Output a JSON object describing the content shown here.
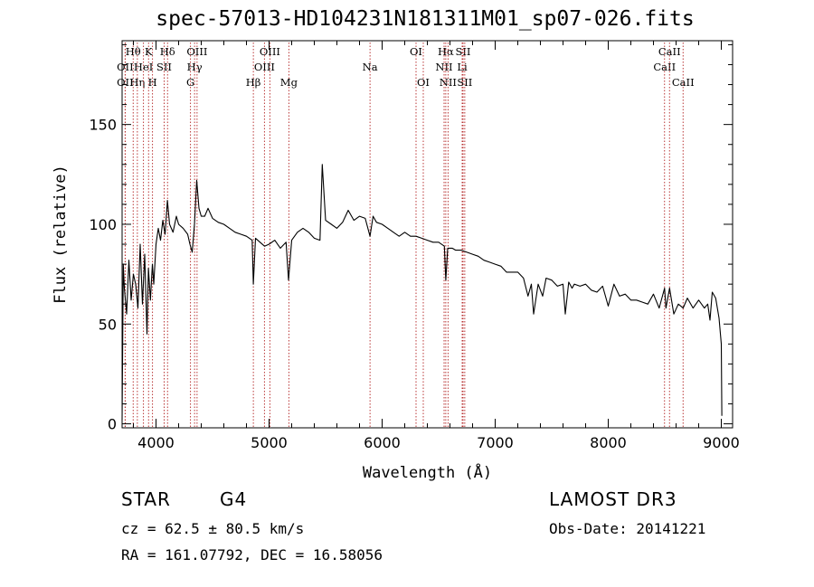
{
  "chart_data": {
    "type": "line",
    "title": "spec-57013-HD104231N181311M01_sp07-026.fits",
    "xlabel": "Wavelength (Å)",
    "ylabel": "Flux (relative)",
    "xlim": [
      3700,
      9100
    ],
    "ylim": [
      -2,
      192
    ],
    "xticks": [
      4000,
      5000,
      6000,
      7000,
      8000,
      9000
    ],
    "yticks": [
      0,
      50,
      100,
      150
    ],
    "series": [
      {
        "name": "flux",
        "x": [
          3700,
          3710,
          3720,
          3740,
          3760,
          3780,
          3800,
          3820,
          3840,
          3860,
          3880,
          3900,
          3920,
          3933,
          3950,
          3968,
          3980,
          4000,
          4020,
          4040,
          4060,
          4080,
          4101,
          4120,
          4150,
          4180,
          4200,
          4240,
          4280,
          4300,
          4320,
          4340,
          4360,
          4380,
          4400,
          4430,
          4460,
          4500,
          4550,
          4600,
          4650,
          4700,
          4750,
          4800,
          4850,
          4861,
          4880,
          4920,
          4960,
          5000,
          5050,
          5100,
          5150,
          5172,
          5200,
          5250,
          5300,
          5350,
          5400,
          5450,
          5470,
          5500,
          5550,
          5600,
          5650,
          5700,
          5750,
          5800,
          5850,
          5893,
          5920,
          5950,
          6000,
          6050,
          6100,
          6150,
          6200,
          6250,
          6300,
          6350,
          6400,
          6450,
          6500,
          6550,
          6563,
          6580,
          6620,
          6650,
          6700,
          6750,
          6800,
          6850,
          6900,
          6950,
          7000,
          7050,
          7100,
          7150,
          7200,
          7250,
          7290,
          7320,
          7340,
          7380,
          7420,
          7450,
          7500,
          7550,
          7600,
          7620,
          7650,
          7680,
          7700,
          7750,
          7800,
          7850,
          7900,
          7950,
          8000,
          8050,
          8100,
          8150,
          8200,
          8250,
          8300,
          8350,
          8400,
          8450,
          8498,
          8510,
          8542,
          8580,
          8620,
          8662,
          8700,
          8750,
          8800,
          8850,
          8880,
          8900,
          8920,
          8950,
          8980,
          9000,
          9005
        ],
        "y": [
          2,
          80,
          68,
          55,
          82,
          62,
          75,
          70,
          58,
          90,
          60,
          85,
          45,
          78,
          62,
          80,
          70,
          90,
          98,
          92,
          102,
          95,
          112,
          100,
          96,
          104,
          100,
          98,
          95,
          90,
          86,
          100,
          122,
          108,
          104,
          104,
          108,
          103,
          101,
          100,
          98,
          96,
          95,
          94,
          92,
          70,
          93,
          91,
          89,
          90,
          92,
          88,
          91,
          72,
          92,
          96,
          98,
          96,
          93,
          92,
          130,
          102,
          100,
          98,
          101,
          107,
          102,
          104,
          103,
          94,
          104,
          101,
          100,
          98,
          96,
          94,
          96,
          94,
          94,
          93,
          92,
          91,
          91,
          89,
          72,
          88,
          88,
          87,
          87,
          86,
          85,
          84,
          82,
          81,
          80,
          79,
          76,
          76,
          76,
          73,
          64,
          70,
          55,
          70,
          64,
          73,
          72,
          69,
          70,
          55,
          71,
          68,
          70,
          69,
          70,
          67,
          66,
          69,
          59,
          70,
          64,
          65,
          62,
          62,
          61,
          60,
          65,
          58,
          68,
          58,
          68,
          55,
          60,
          58,
          63,
          58,
          62,
          58,
          60,
          52,
          66,
          63,
          53,
          40,
          4
        ]
      }
    ],
    "lines": [
      {
        "name": "Hθ",
        "w": 3798,
        "row": 0
      },
      {
        "name": "OII",
        "w": 3727,
        "row": 1
      },
      {
        "name": "OII",
        "w": 3727,
        "row": 2
      },
      {
        "name": "Hη",
        "w": 3835,
        "row": 2
      },
      {
        "name": "HeI",
        "w": 3889,
        "row": 1
      },
      {
        "name": "K",
        "w": 3934,
        "row": 0
      },
      {
        "name": "H",
        "w": 3969,
        "row": 2
      },
      {
        "name": "SII",
        "w": 4072,
        "row": 1
      },
      {
        "name": "Hδ",
        "w": 4102,
        "row": 0
      },
      {
        "name": "G",
        "w": 4305,
        "row": 2
      },
      {
        "name": "Hγ",
        "w": 4341,
        "row": 1
      },
      {
        "name": "OIII",
        "w": 4363,
        "row": 0
      },
      {
        "name": "Hβ",
        "w": 4861,
        "row": 2
      },
      {
        "name": "OIII",
        "w": 4959,
        "row": 1
      },
      {
        "name": "OIII",
        "w": 5007,
        "row": 0
      },
      {
        "name": "Mg",
        "w": 5175,
        "row": 2
      },
      {
        "name": "Na",
        "w": 5893,
        "row": 1
      },
      {
        "name": "OI",
        "w": 6300,
        "row": 0
      },
      {
        "name": "OI",
        "w": 6364,
        "row": 2
      },
      {
        "name": "NII",
        "w": 6548,
        "row": 1
      },
      {
        "name": "Hα",
        "w": 6563,
        "row": 0
      },
      {
        "name": "NII",
        "w": 6583,
        "row": 2
      },
      {
        "name": "Li",
        "w": 6708,
        "row": 1
      },
      {
        "name": "SII",
        "w": 6716,
        "row": 0
      },
      {
        "name": "SII",
        "w": 6731,
        "row": 2
      },
      {
        "name": "CaII",
        "w": 8498,
        "row": 1
      },
      {
        "name": "CaII",
        "w": 8542,
        "row": 0
      },
      {
        "name": "CaII",
        "w": 8662,
        "row": 2
      }
    ]
  },
  "info": {
    "class": "STAR",
    "subclass": "G4",
    "survey": "LAMOST DR3",
    "cz": "cz = 62.5 ± 80.5 km/s",
    "obsdate": "Obs-Date: 20141221",
    "coords": "RA = 161.07792, DEC =  16.58056"
  }
}
